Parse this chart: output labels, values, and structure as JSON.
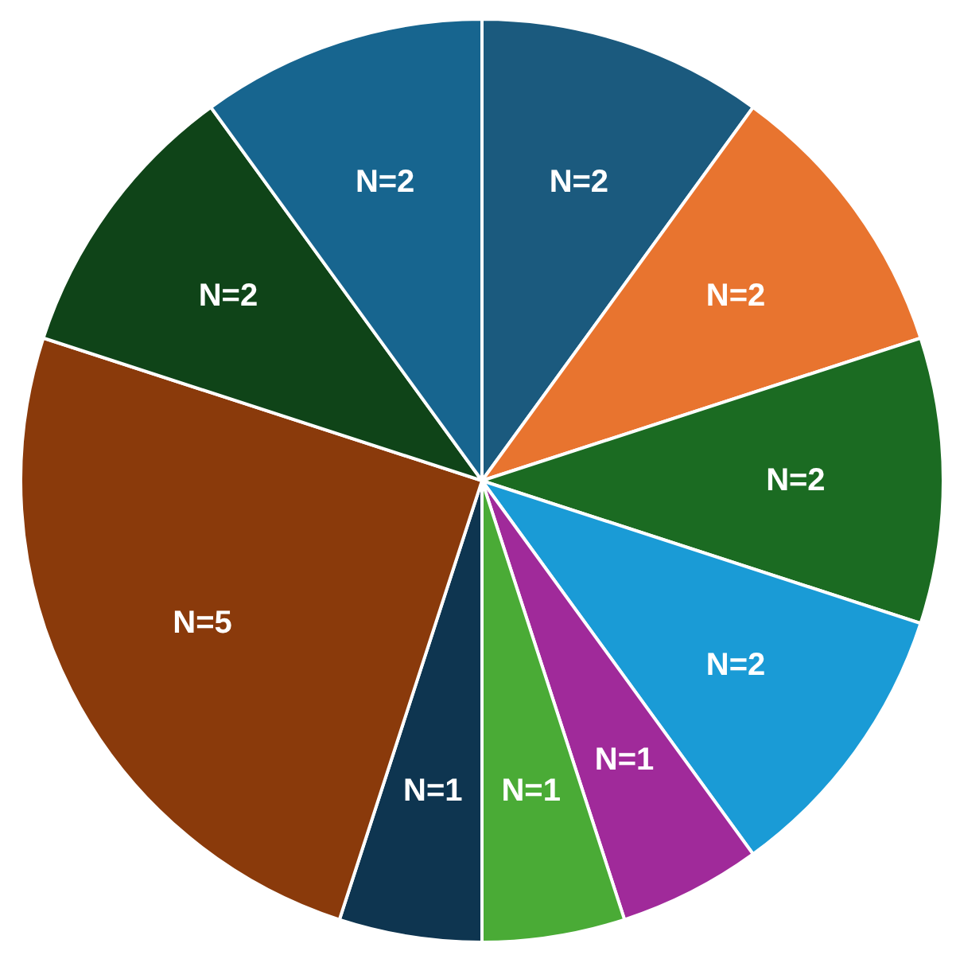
{
  "chart_data": {
    "type": "pie",
    "categories": [
      null,
      null,
      null,
      null,
      null,
      null,
      null,
      null,
      null,
      null
    ],
    "values": [
      2,
      2,
      2,
      2,
      1,
      1,
      1,
      5,
      2,
      2
    ],
    "value_labels": [
      "N=2",
      "N=2",
      "N=2",
      "N=2",
      "N=1",
      "N=1",
      "N=1",
      "N=5",
      "N=2",
      "N=2"
    ],
    "colors": [
      "#1b5a7e",
      "#e8742f",
      "#1b6b22",
      "#1a9bd6",
      "#a02a9a",
      "#4aab36",
      "#0e3550",
      "#8a3a0b",
      "#0f4418",
      "#17658f"
    ]
  }
}
